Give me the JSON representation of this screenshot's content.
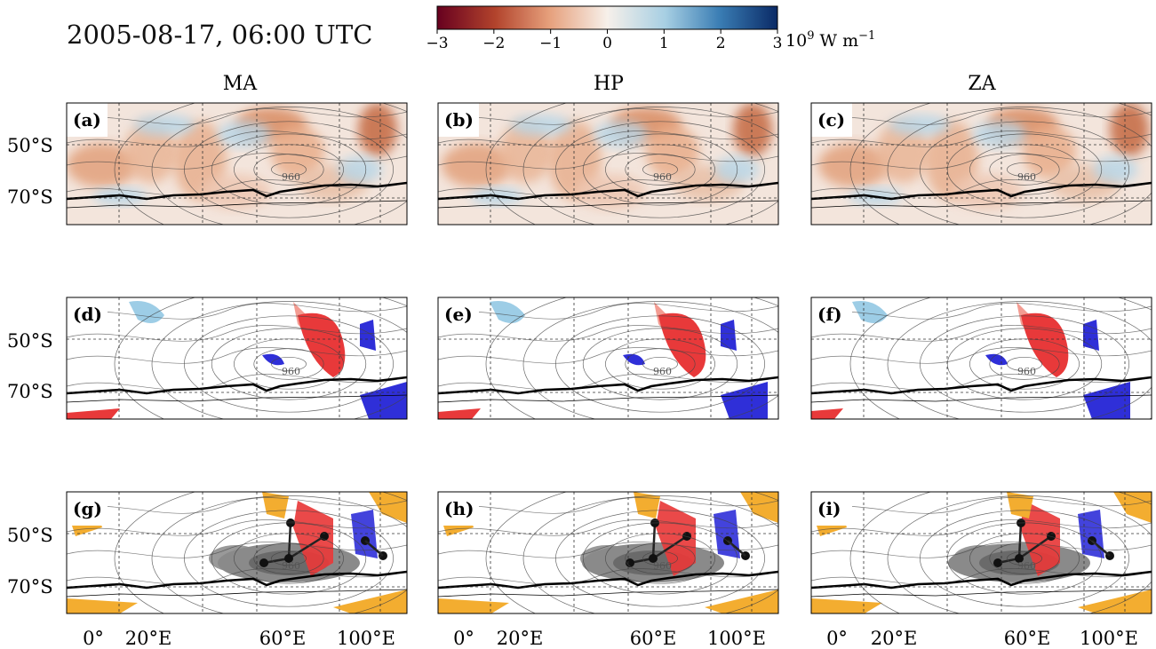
{
  "header": {
    "date_title": "2005-08-17, 06:00 UTC"
  },
  "colorbar": {
    "ticks": [
      "−3",
      "−2",
      "−1",
      "0",
      "1",
      "2",
      "3"
    ],
    "tick_values": [
      -3,
      -2,
      -1,
      0,
      1,
      2,
      3
    ],
    "unit_prefix": "10",
    "unit_exponent": "9",
    "unit_main": " W m",
    "unit_suffix": "−1",
    "colors": [
      "#67001f",
      "#b2432c",
      "#e6a07c",
      "#f7f0ea",
      "#a7cfe3",
      "#3a7db4",
      "#0a2a66"
    ]
  },
  "columns": [
    "MA",
    "HP",
    "ZA"
  ],
  "panel_labels": [
    "(a)",
    "(b)",
    "(c)",
    "(d)",
    "(e)",
    "(f)",
    "(g)",
    "(h)",
    "(i)"
  ],
  "y_ticks": [
    "50°S",
    "70°S"
  ],
  "x_ticks": [
    "0°",
    "20°E",
    "60°E",
    "100°E"
  ],
  "contour_label": "960",
  "colors": {
    "warm_dark": "#e8393a",
    "warm_light": "#f39c92",
    "cold_dark": "#2f2fd8",
    "cold_light": "#9dcde6",
    "track_orange": "#f3ad30",
    "cyclone_gray": "#7d7d7d"
  },
  "chart_data": {
    "type": "heatmap",
    "title": "2005-08-17, 06:00 UTC",
    "colorbar_range": [
      -3,
      3
    ],
    "colorbar_unit": "10^9 W m^-1",
    "rows": [
      "field",
      "objects",
      "tracks"
    ],
    "columns": [
      "MA",
      "HP",
      "ZA"
    ],
    "x_ticks": [
      "0°",
      "20°E",
      "60°E",
      "100°E"
    ],
    "y_ticks": [
      "50°S",
      "70°S"
    ],
    "annotations": [
      "960"
    ]
  }
}
